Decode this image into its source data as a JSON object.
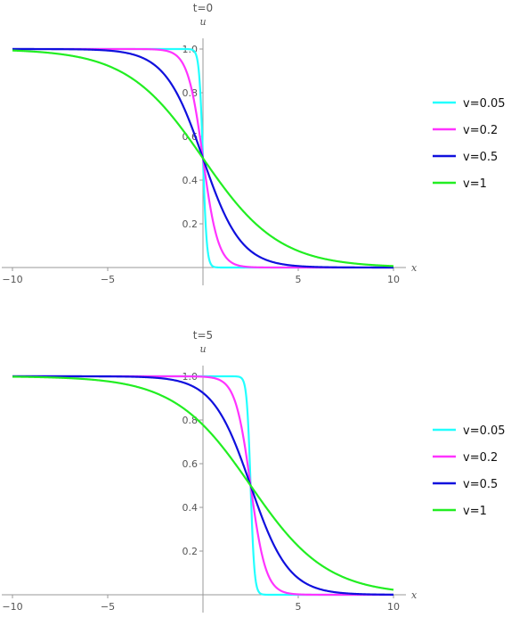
{
  "chart_data": [
    {
      "type": "line",
      "title": "t=0",
      "xlabel": "x",
      "ylabel": "u",
      "xlim": [
        -10,
        10
      ],
      "ylim": [
        0,
        1.05
      ],
      "xticks": [
        -10,
        -5,
        5,
        10
      ],
      "xtick_labels": [
        "−10",
        "−5",
        "5",
        "10"
      ],
      "yticks": [
        0.2,
        0.4,
        0.6,
        0.8,
        1.0
      ],
      "ytick_labels": [
        "0.2",
        "0.4",
        "0.6",
        "0.8",
        "1.0"
      ],
      "grid": false,
      "legend": "right",
      "t": 0,
      "series": [
        {
          "name": "v=0.05",
          "nu": 0.05,
          "color": "#22ffff"
        },
        {
          "name": "v=0.2",
          "nu": 0.2,
          "color": "#ff33ff"
        },
        {
          "name": "v=0.5",
          "nu": 0.5,
          "color": "#1010dd"
        },
        {
          "name": "v=1",
          "nu": 1,
          "color": "#22ee22"
        }
      ]
    },
    {
      "type": "line",
      "title": "t=5",
      "xlabel": "x",
      "ylabel": "u",
      "xlim": [
        -10,
        10
      ],
      "ylim": [
        0,
        1.05
      ],
      "xticks": [
        -10,
        -5,
        5,
        10
      ],
      "xtick_labels": [
        "−10",
        "−5",
        "5",
        "10"
      ],
      "yticks": [
        0.2,
        0.4,
        0.6,
        0.8,
        1.0
      ],
      "ytick_labels": [
        "0.2",
        "0.4",
        "0.6",
        "0.8",
        "1.0"
      ],
      "grid": false,
      "legend": "right",
      "t": 5,
      "series": [
        {
          "name": "v=0.05",
          "nu": 0.05,
          "color": "#22ffff"
        },
        {
          "name": "v=0.2",
          "nu": 0.2,
          "color": "#ff33ff"
        },
        {
          "name": "v=0.5",
          "nu": 0.5,
          "color": "#1010dd"
        },
        {
          "name": "v=1",
          "nu": 1,
          "color": "#22ee22"
        }
      ]
    }
  ]
}
